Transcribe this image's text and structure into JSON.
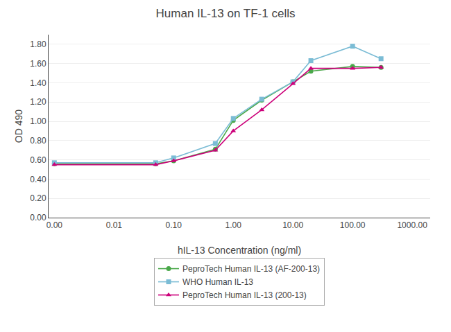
{
  "chart_data": {
    "type": "line",
    "title": "Human IL-13 on TF-1 cells",
    "xlabel": "hIL-13 Concentration (ng/ml)",
    "ylabel": "OD 490",
    "log": "x",
    "grid": "y",
    "legend": "bottom",
    "x": [
      0.001,
      0.05,
      0.1,
      0.5,
      1.0,
      3.0,
      10.0,
      20.0,
      100.0,
      300.0
    ],
    "series": [
      {
        "name": "PeproTech Human IL-13 (AF-200-13)",
        "color": "#4aa84a",
        "marker": "circle",
        "values": [
          0.56,
          0.56,
          0.59,
          0.71,
          1.01,
          1.22,
          1.41,
          1.52,
          1.57,
          1.56
        ]
      },
      {
        "name": "WHO Human IL-13",
        "color": "#7bbcd5",
        "marker": "square",
        "values": [
          0.57,
          0.57,
          0.62,
          0.77,
          1.03,
          1.23,
          1.41,
          1.63,
          1.78,
          1.65
        ]
      },
      {
        "name": "PeproTech Human IL-13 (200-13)",
        "color": "#cc007a",
        "marker": "triangle",
        "values": [
          0.55,
          0.55,
          0.59,
          0.7,
          0.9,
          1.12,
          1.39,
          1.55,
          1.55,
          1.56
        ]
      }
    ],
    "xlim": [
      0.0008,
      2000
    ],
    "xticks": [
      {
        "value": 0.001,
        "label": "0.00"
      },
      0.01,
      {
        "value": 0.1,
        "label": "0.10"
      },
      {
        "value": 1.0,
        "label": "1.00"
      },
      {
        "value": 10.0,
        "label": "10.00"
      },
      {
        "value": 100.0,
        "label": "100.00"
      },
      {
        "value": 1000.0,
        "label": "1000.00"
      }
    ],
    "ylim": [
      0.0,
      1.9
    ],
    "yticks": [
      {
        "value": 0.0,
        "label": "0.00"
      },
      {
        "value": 0.2,
        "label": "0.20"
      },
      {
        "value": 0.4,
        "label": "0.40"
      },
      {
        "value": 0.6,
        "label": "0.60"
      },
      {
        "value": 0.8,
        "label": "0.80"
      },
      {
        "value": 1.0,
        "label": "1.00"
      },
      {
        "value": 1.2,
        "label": "1.20"
      },
      {
        "value": 1.4,
        "label": "1.40"
      },
      {
        "value": 1.6,
        "label": "1.60"
      },
      {
        "value": 1.8,
        "label": "1.80"
      }
    ]
  }
}
